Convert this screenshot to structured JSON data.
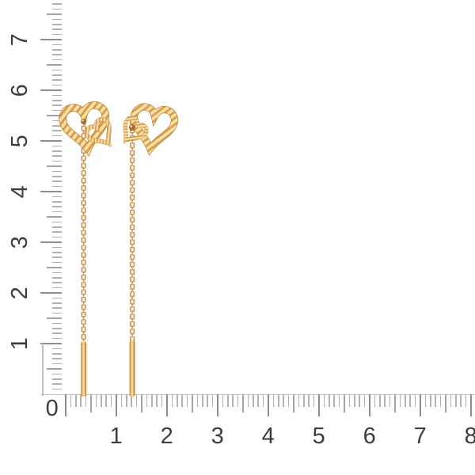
{
  "image": {
    "subject": "pair of gold threader drop earrings with double open-heart diamond-cut tops, cable chains and bar drops, shown against vertical and horizontal measurement rulers",
    "background_color": "#ffffff"
  },
  "earrings": {
    "count": 2,
    "left": {
      "parts": [
        "double-open-heart-top",
        "cable-chain",
        "bar-drop",
        "clasp-knot"
      ]
    },
    "right": {
      "parts": [
        "double-open-heart-top",
        "cable-chain",
        "bar-drop",
        "clasp-knot"
      ]
    }
  },
  "rulers": {
    "vertical": {
      "side": "left",
      "labels": [
        "1",
        "2",
        "3",
        "4",
        "5",
        "6",
        "7"
      ],
      "tick_step": 0.1,
      "ticks_max_value": 7.7,
      "label_rotation_deg": -90
    },
    "horizontal": {
      "side": "bottom",
      "labels": [
        "0",
        "1",
        "2",
        "3",
        "4",
        "5",
        "6",
        "7",
        "8"
      ],
      "tick_step": 0.1,
      "ticks_max_value": 8.0
    }
  },
  "colors": {
    "background": "#ffffff",
    "tick-minor": "#b1b1b1",
    "tick-half": "#a2a2a2",
    "tick-major": "#8e8e8e",
    "spine": "#c0c0c0",
    "label": "#3d3d3d",
    "gold-light": "#f8e2ac",
    "gold-stripe": "#dd9b43",
    "gold-band-edge": "#c8812f",
    "gold-chain": "#cd8944",
    "gold-chain-fill": "#fdf4de",
    "gold-bar-dark": "#b5772e",
    "gold-bar-mid": "#edbb6e",
    "gold-bar-light": "#fbe7b4",
    "gold-bar-deep": "#dd9c4c",
    "knot": "#aa6c2d"
  }
}
